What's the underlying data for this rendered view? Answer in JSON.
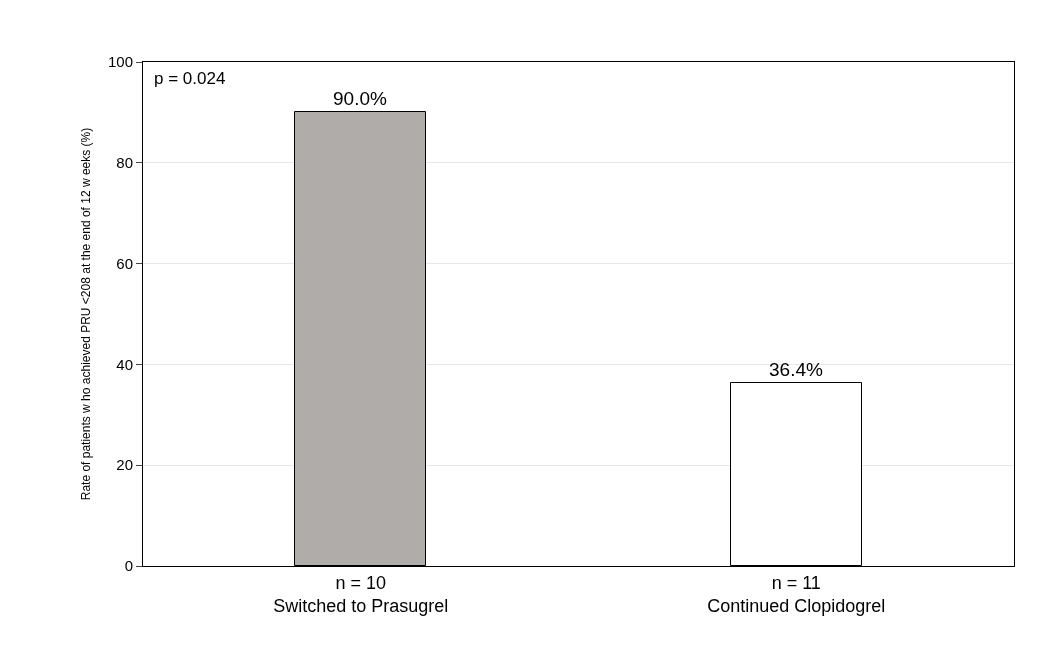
{
  "chart_data": {
    "type": "bar",
    "ylabel": "Rate of patients w ho achieved PRU <208 at the end of 12 w eeks (%)",
    "categories": [
      "n = 10\nSwitched to Prasugrel",
      "n = 11\nContinued Clopidogrel"
    ],
    "values": [
      90.0,
      36.4
    ],
    "colors": [
      "#b0acaa",
      "#ffffff"
    ],
    "value_labels": [
      "90.0%",
      "36.4%"
    ],
    "ylim": [
      0,
      100
    ],
    "yticks": [
      0,
      20,
      40,
      60,
      80,
      100
    ],
    "grid": "y",
    "annotations": [
      "p = 0.024"
    ]
  }
}
